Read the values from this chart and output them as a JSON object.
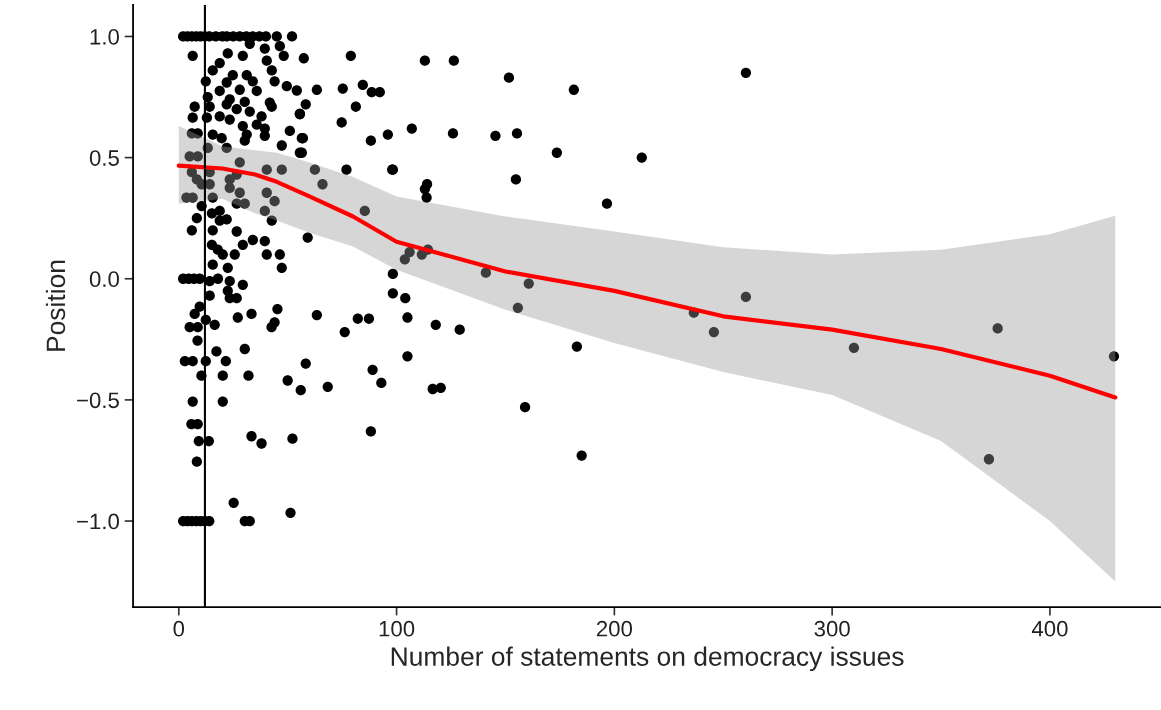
{
  "chart_data": {
    "type": "scatter",
    "xlabel": "Number of statements on democracy issues",
    "ylabel": "Position",
    "xlim": [
      -21,
      451
    ],
    "ylim": [
      -1.355,
      1.13
    ],
    "xticks": [
      0,
      100,
      200,
      300,
      400
    ],
    "yticks": [
      {
        "value": -1.0,
        "label": "−1.0"
      },
      {
        "value": -0.5,
        "label": "−0.5"
      },
      {
        "value": 0.0,
        "label": "0.0"
      },
      {
        "value": 0.5,
        "label": "0.5"
      },
      {
        "value": 1.0,
        "label": "1.0"
      }
    ],
    "ref_lines": [
      {
        "axis": "x",
        "value": 12,
        "color": "#000000"
      }
    ],
    "series": [
      {
        "marker": "circle",
        "color": "#000000",
        "x": [
          2,
          4,
          6,
          8,
          10,
          12,
          14,
          17,
          20,
          22,
          25,
          28,
          31,
          34,
          37,
          40,
          45,
          52,
          6.4,
          32.6,
          39.5,
          46.4,
          48.2,
          22.5,
          29.4,
          18.8,
          40.4,
          15.6,
          24.8,
          31.2,
          42.7,
          12.4,
          22,
          34,
          44,
          49.6,
          18.8,
          28,
          35.8,
          54.2,
          13.3,
          23.4,
          30.3,
          41.8,
          7.3,
          14.2,
          22,
          26.6,
          32.6,
          42.7,
          6.4,
          12.9,
          18.8,
          23.4,
          29.4,
          35.8,
          38,
          39.5,
          55.6,
          6,
          8.7,
          15.6,
          19.7,
          31.2,
          30.3,
          39.5,
          51,
          56.5,
          47.3,
          55.6,
          13.3,
          22,
          5,
          8.7,
          28,
          40.4,
          47.3,
          6,
          14.2,
          8.3,
          14.2,
          23.4,
          26.6,
          23.4,
          28,
          10.5,
          40.4,
          44,
          3.5,
          6.4,
          15.6,
          10.5,
          26.6,
          30.3,
          39.5,
          42.7,
          8.3,
          15.2,
          18.8,
          22,
          6,
          15.6,
          18.8,
          26.6,
          29.4,
          34,
          39.5,
          40.4,
          46.4,
          15.2,
          17.9,
          20.2,
          25.7,
          47.3,
          15.6,
          22.5,
          2,
          4.5,
          7,
          9.6,
          14.2,
          18,
          23.4,
          29.4,
          14.2,
          22.5,
          23.4,
          26.6,
          9.6,
          7.3,
          12.4,
          16.5,
          27.1,
          33.4,
          45.3,
          44,
          42.6,
          5,
          8.7,
          8.6,
          17.3,
          30.3,
          2.8,
          6.4,
          12.4,
          21.6,
          10.4,
          20.2,
          32,
          50,
          6.4,
          20.2,
          5.8,
          8.7,
          9.2,
          13.8,
          33.4,
          38,
          52.2,
          8.3,
          25.2,
          51.3,
          2,
          4,
          6,
          8,
          10,
          12,
          14,
          30.3,
          32.6,
          260.4,
          181.4,
          126.3,
          151.6,
          79,
          212.6,
          173.6,
          196.6,
          155.3,
          145.4,
          125.9,
          107,
          96,
          88.6,
          92.3,
          84.5,
          75.3,
          74.8,
          81.3,
          88.2,
          98,
          77,
          114,
          113.8,
          85.4,
          113,
          103.8,
          106,
          111.6,
          114.4,
          141,
          160.7,
          155.7,
          98.3,
          98.3,
          104,
          105,
          118,
          129,
          182.8,
          159,
          185,
          88.2,
          116.6,
          120.3,
          105,
          89,
          93,
          58.3,
          68.4,
          56,
          63.4,
          76.2,
          82.2,
          87.3,
          59.2,
          98.3,
          62.5,
          66,
          57.4,
          113,
          63.4,
          58.3,
          154.8,
          55.6,
          57,
          56.5,
          260.4,
          236.5,
          245.7,
          310,
          376,
          372,
          429.4
        ],
        "values": [
          1,
          1,
          1,
          1,
          1,
          1,
          1,
          1,
          1,
          1,
          1,
          1,
          1,
          1,
          1,
          1,
          1,
          1,
          0.92,
          0.97,
          0.95,
          0.96,
          0.92,
          0.93,
          0.92,
          0.89,
          0.9,
          0.86,
          0.84,
          0.84,
          0.86,
          0.815,
          0.81,
          0.815,
          0.815,
          0.795,
          0.775,
          0.78,
          0.775,
          0.777,
          0.75,
          0.74,
          0.73,
          0.727,
          0.71,
          0.71,
          0.72,
          0.7,
          0.69,
          0.71,
          0.665,
          0.665,
          0.67,
          0.657,
          0.63,
          0.636,
          0.67,
          0.62,
          0.68,
          0.6,
          0.6,
          0.595,
          0.58,
          0.595,
          0.57,
          0.59,
          0.61,
          0.58,
          0.55,
          0.52,
          0.54,
          0.54,
          0.505,
          0.505,
          0.48,
          0.45,
          0.45,
          0.44,
          0.44,
          0.41,
          0.39,
          0.41,
          0.43,
          0.375,
          0.355,
          0.39,
          0.355,
          0.32,
          0.335,
          0.335,
          0.335,
          0.3,
          0.31,
          0.31,
          0.28,
          0.24,
          0.25,
          0.27,
          0.28,
          0.245,
          0.2,
          0.2,
          0.24,
          0.195,
          0.14,
          0.16,
          0.155,
          0.1,
          0.1,
          0.14,
          0.12,
          0.1,
          0.1,
          0.045,
          0.058,
          0.045,
          0,
          0,
          0,
          0,
          -0.01,
          0,
          -0.01,
          -0.025,
          -0.07,
          -0.05,
          -0.08,
          -0.08,
          -0.115,
          -0.145,
          -0.17,
          -0.19,
          -0.16,
          -0.145,
          -0.125,
          -0.18,
          -0.2,
          -0.2,
          -0.2,
          -0.255,
          -0.3,
          -0.29,
          -0.34,
          -0.34,
          -0.34,
          -0.34,
          -0.4,
          -0.4,
          -0.4,
          -0.42,
          -0.507,
          -0.507,
          -0.6,
          -0.6,
          -0.67,
          -0.67,
          -0.65,
          -0.68,
          -0.66,
          -0.755,
          -0.925,
          -0.966,
          -1,
          -1,
          -1,
          -1,
          -1,
          -1,
          -1,
          -1,
          -1,
          0.85,
          0.78,
          0.9,
          0.83,
          0.92,
          0.5,
          0.52,
          0.31,
          0.6,
          0.59,
          0.6,
          0.62,
          0.595,
          0.77,
          0.77,
          0.8,
          0.785,
          0.645,
          0.71,
          0.57,
          0.45,
          0.45,
          0.39,
          0.335,
          0.28,
          0.37,
          0.08,
          0.11,
          0.1,
          0.12,
          0.025,
          -0.02,
          -0.12,
          0.02,
          -0.06,
          -0.08,
          -0.16,
          -0.19,
          -0.21,
          -0.28,
          -0.53,
          -0.73,
          -0.63,
          -0.455,
          -0.45,
          -0.32,
          -0.376,
          -0.43,
          -0.35,
          -0.446,
          -0.46,
          -0.15,
          -0.22,
          -0.165,
          -0.165,
          0.17,
          0.45,
          0.45,
          0.39,
          0.91,
          0.9,
          0.78,
          0.72,
          0.41,
          0.68,
          0.58,
          0.52,
          -0.075,
          -0.14,
          -0.22,
          -0.285,
          -0.205,
          -0.745,
          -0.32
        ]
      },
      {
        "type": "line",
        "color": "#ff0000",
        "x": [
          0,
          20,
          35,
          45,
          60,
          80,
          100,
          150,
          200,
          250,
          300,
          350,
          400,
          430
        ],
        "values": [
          0.467,
          0.455,
          0.43,
          0.4,
          0.34,
          0.257,
          0.153,
          0.03,
          -0.05,
          -0.155,
          -0.21,
          -0.29,
          -0.4,
          -0.49
        ],
        "lower": [
          0.31,
          0.33,
          0.27,
          0.24,
          0.19,
          0.133,
          0.037,
          -0.128,
          -0.265,
          -0.385,
          -0.48,
          -0.67,
          -1.0,
          -1.25
        ],
        "upper": [
          0.63,
          0.547,
          0.53,
          0.52,
          0.48,
          0.42,
          0.34,
          0.257,
          0.195,
          0.13,
          0.1,
          0.12,
          0.184,
          0.26
        ]
      }
    ]
  }
}
